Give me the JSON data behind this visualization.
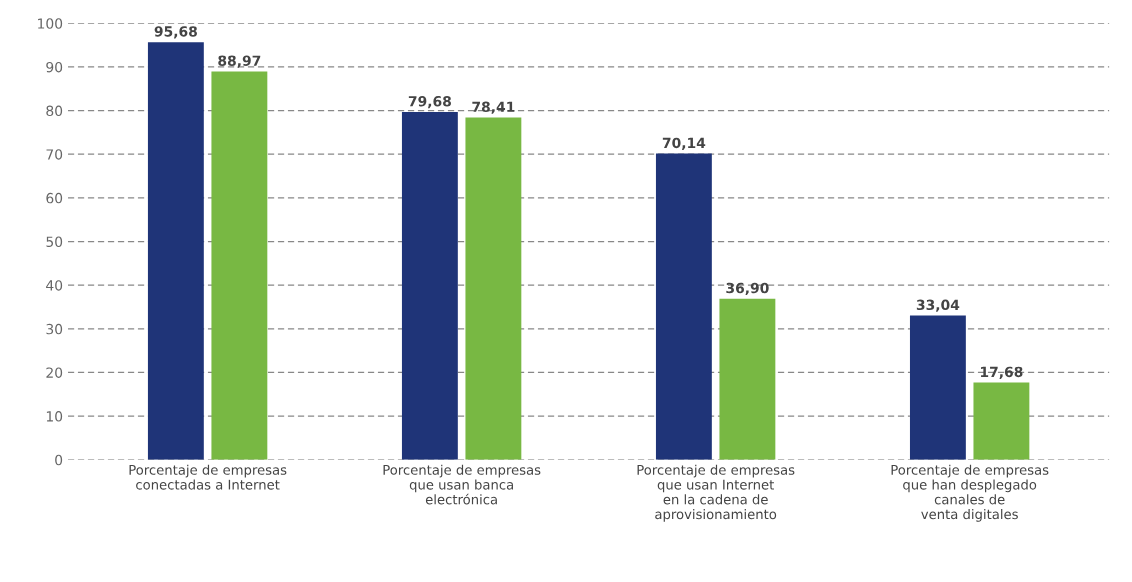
{
  "chart_data": {
    "type": "bar",
    "categories": [
      "Porcentaje de empresas\nconectadas a Internet",
      "Porcentaje de empresas\nque usan banca\nelectrónica",
      "Porcentaje de empresas\nque usan Internet\nen la cadena de\naprovisionamiento",
      "Porcentaje de empresas\nque han desplegado\ncanales de\nventa digitales"
    ],
    "series": [
      {
        "color": "#1f3478",
        "values": [
          95.68,
          79.68,
          70.14,
          33.04
        ],
        "value_labels": [
          "95,68",
          "79,68",
          "70,14",
          "33,04"
        ]
      },
      {
        "color": "#78b843",
        "values": [
          88.97,
          78.41,
          36.9,
          17.68
        ],
        "value_labels": [
          "88,97",
          "78,41",
          "36,90",
          "17,68"
        ]
      }
    ],
    "ylim": [
      0,
      100
    ],
    "yticks": [
      0,
      10,
      20,
      30,
      40,
      50,
      60,
      70,
      80,
      90,
      100
    ],
    "grid": "y"
  }
}
